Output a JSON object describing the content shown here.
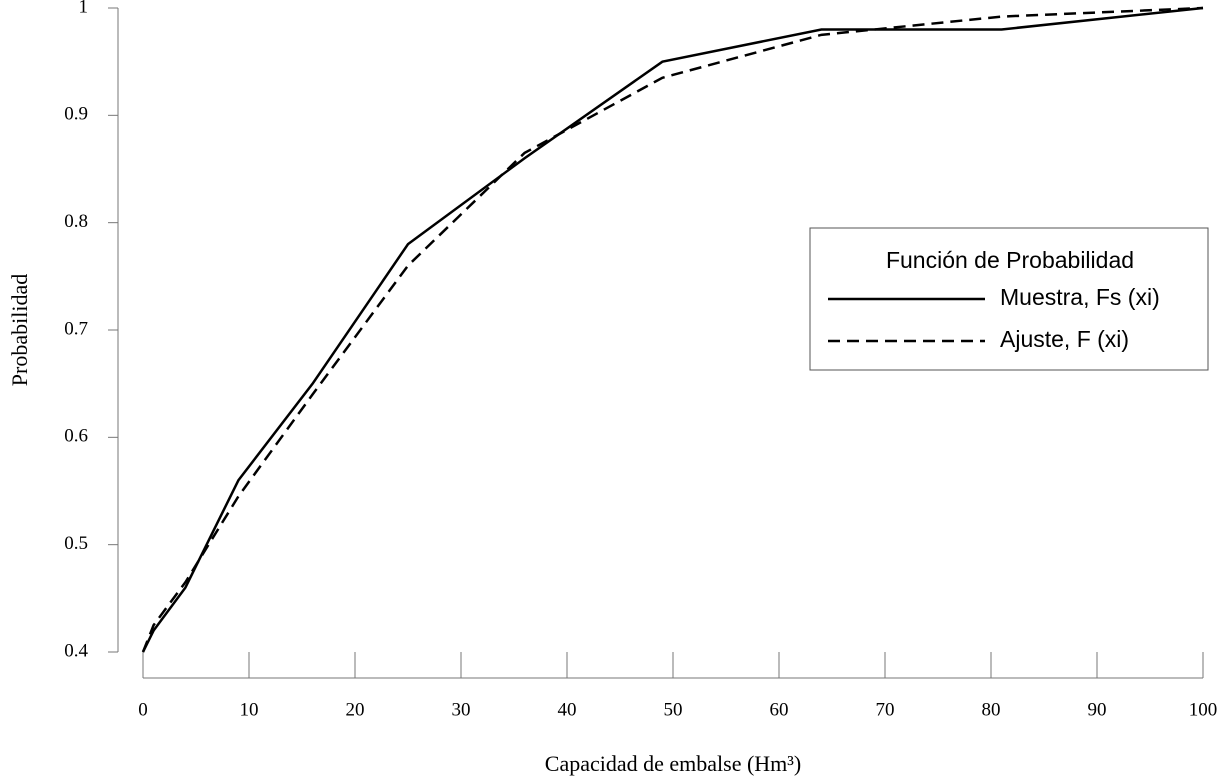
{
  "chart_data": {
    "type": "line",
    "xlabel": "Capacidad de embalse (Hm³)",
    "ylabel": "Probabilidad",
    "legend_title": "Función de Probabilidad",
    "legend_position": "right",
    "series": [
      {
        "name": "Muestra, Fs (xi)",
        "color": "#000000",
        "dash": "solid",
        "x": [
          0,
          1,
          4,
          9,
          16,
          25,
          36,
          49,
          64,
          81,
          100
        ],
        "values": [
          0.4,
          0.42,
          0.46,
          0.56,
          0.65,
          0.78,
          0.86,
          0.95,
          0.98,
          0.98,
          1.0
        ]
      },
      {
        "name": "Ajuste, F (xi)",
        "color": "#000000",
        "dash": "dashed",
        "x": [
          0,
          1,
          4,
          9,
          16,
          25,
          36,
          49,
          64,
          81,
          100
        ],
        "values": [
          0.4,
          0.425,
          0.465,
          0.545,
          0.64,
          0.76,
          0.865,
          0.935,
          0.975,
          0.992,
          1.0
        ]
      }
    ],
    "xlim": [
      0,
      100
    ],
    "xticks": [
      0,
      10,
      20,
      30,
      40,
      50,
      60,
      70,
      80,
      90,
      100
    ],
    "ylim": [
      0.4,
      1
    ],
    "yticks": [
      0.4,
      0.5,
      0.6,
      0.7,
      0.8,
      0.9,
      1
    ]
  }
}
